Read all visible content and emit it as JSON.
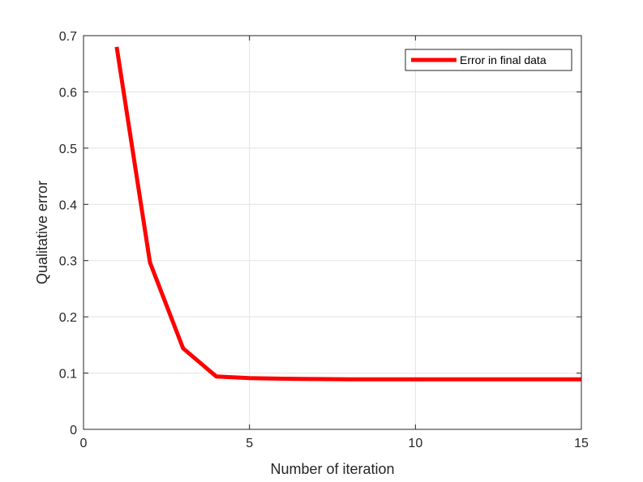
{
  "chart_data": {
    "type": "line",
    "xlabel": "Number of iteration",
    "ylabel": "Qualitative error",
    "xlim": [
      0,
      15
    ],
    "ylim": [
      0,
      0.7
    ],
    "x_ticks": [
      0,
      5,
      10,
      15
    ],
    "y_ticks": [
      0,
      0.1,
      0.2,
      0.3,
      0.4,
      0.5,
      0.6,
      0.7
    ],
    "x_tick_labels": [
      "0",
      "5",
      "10",
      "15"
    ],
    "y_tick_labels": [
      "0",
      "0.1",
      "0.2",
      "0.3",
      "0.4",
      "0.5",
      "0.6",
      "0.7"
    ],
    "grid": true,
    "legend_position": "top-right",
    "series": [
      {
        "name": "Error in final data",
        "color": "#ff0000",
        "x": [
          1,
          2,
          3,
          4,
          5,
          6,
          7,
          8,
          9,
          10,
          11,
          12,
          13,
          14,
          15
        ],
        "y": [
          0.68,
          0.297,
          0.144,
          0.094,
          0.091,
          0.09,
          0.0895,
          0.089,
          0.089,
          0.089,
          0.089,
          0.089,
          0.089,
          0.089,
          0.089
        ]
      }
    ]
  }
}
